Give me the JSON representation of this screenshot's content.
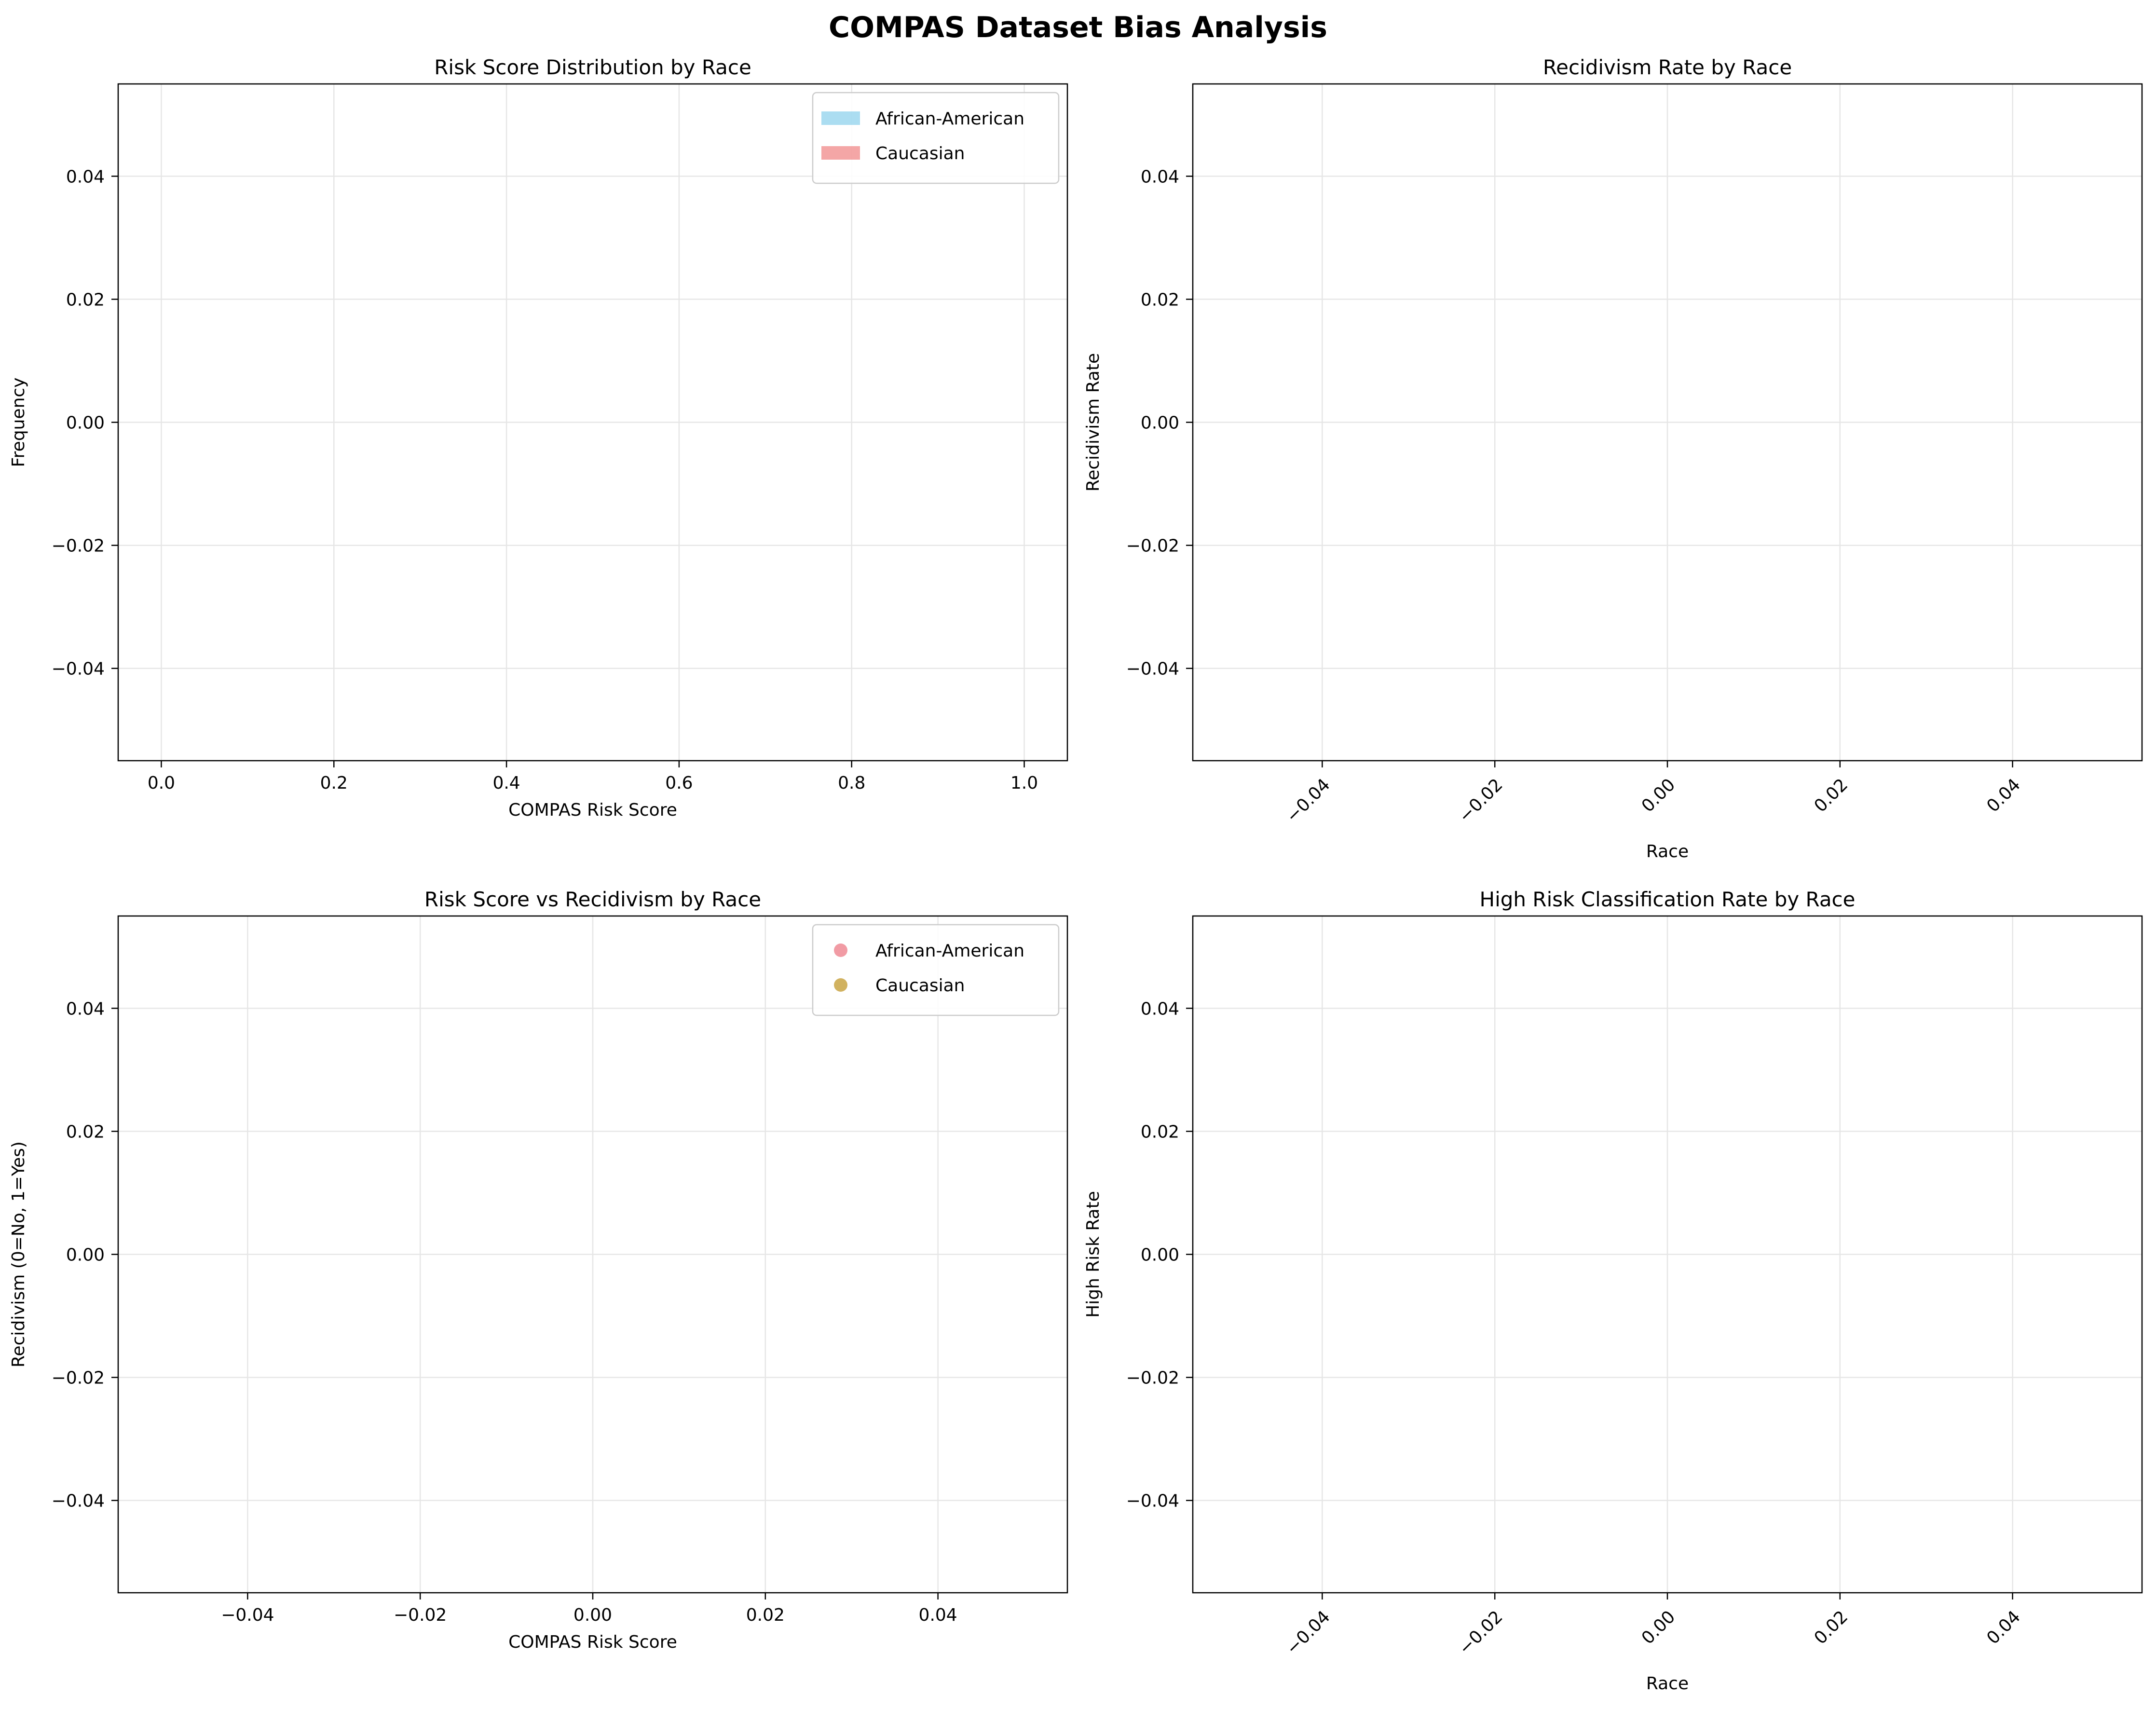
{
  "figure": {
    "title": "COMPAS Dataset Bias Analysis"
  },
  "chart_data": [
    {
      "type": "histogram",
      "title": "Risk Score Distribution by Race",
      "xlabel": "COMPAS Risk Score",
      "ylabel": "Frequency",
      "xlim": [
        -0.05,
        1.05
      ],
      "ylim": [
        -0.055,
        0.055
      ],
      "xticks": [
        "0.0",
        "0.2",
        "0.4",
        "0.6",
        "0.8",
        "1.0"
      ],
      "xtick_values": [
        0,
        0.2,
        0.4,
        0.6,
        0.8,
        1.0
      ],
      "xtick_rotation": 0,
      "yticks": [
        "−0.04",
        "−0.02",
        "0.00",
        "0.02",
        "0.04"
      ],
      "ytick_values": [
        -0.04,
        -0.02,
        0,
        0.02,
        0.04
      ],
      "grid": true,
      "legend": "top-right",
      "series": [
        {
          "name": "African-American",
          "color": "#87ceeb",
          "marker": "patch",
          "values": []
        },
        {
          "name": "Caucasian",
          "color": "#f08080",
          "marker": "patch",
          "values": []
        }
      ]
    },
    {
      "type": "bar",
      "title": "Recidivism Rate by Race",
      "xlabel": "Race",
      "ylabel": "Recidivism Rate",
      "xlim": [
        -0.055,
        0.055
      ],
      "ylim": [
        -0.055,
        0.055
      ],
      "xticks": [
        "−0.04",
        "−0.02",
        "0.00",
        "0.02",
        "0.04"
      ],
      "xtick_values": [
        -0.04,
        -0.02,
        0,
        0.02,
        0.04
      ],
      "xtick_rotation": -45,
      "yticks": [
        "−0.04",
        "−0.02",
        "0.00",
        "0.02",
        "0.04"
      ],
      "ytick_values": [
        -0.04,
        -0.02,
        0,
        0.02,
        0.04
      ],
      "grid": true,
      "legend": "none",
      "categories": [],
      "values": []
    },
    {
      "type": "scatter",
      "title": "Risk Score vs Recidivism by Race",
      "xlabel": "COMPAS Risk Score",
      "ylabel": "Recidivism (0=No, 1=Yes)",
      "xlim": [
        -0.055,
        0.055
      ],
      "ylim": [
        -0.055,
        0.055
      ],
      "xticks": [
        "−0.04",
        "−0.02",
        "0.00",
        "0.02",
        "0.04"
      ],
      "xtick_values": [
        -0.04,
        -0.02,
        0,
        0.02,
        0.04
      ],
      "xtick_rotation": 0,
      "yticks": [
        "−0.04",
        "−0.02",
        "0.00",
        "0.02",
        "0.04"
      ],
      "ytick_values": [
        -0.04,
        -0.02,
        0,
        0.02,
        0.04
      ],
      "grid": true,
      "legend": "top-right",
      "series": [
        {
          "name": "African-American",
          "color": "#ef8a94",
          "marker": "dot",
          "points": []
        },
        {
          "name": "Caucasian",
          "color": "#c9a444",
          "marker": "dot",
          "points": []
        }
      ]
    },
    {
      "type": "bar",
      "title": "High Risk Classification Rate by Race",
      "xlabel": "Race",
      "ylabel": "High Risk Rate",
      "xlim": [
        -0.055,
        0.055
      ],
      "ylim": [
        -0.055,
        0.055
      ],
      "xticks": [
        "−0.04",
        "−0.02",
        "0.00",
        "0.02",
        "0.04"
      ],
      "xtick_values": [
        -0.04,
        -0.02,
        0,
        0.02,
        0.04
      ],
      "xtick_rotation": -45,
      "yticks": [
        "−0.04",
        "−0.02",
        "0.00",
        "0.02",
        "0.04"
      ],
      "ytick_values": [
        -0.04,
        -0.02,
        0,
        0.02,
        0.04
      ],
      "grid": true,
      "legend": "none",
      "categories": [],
      "values": []
    }
  ]
}
